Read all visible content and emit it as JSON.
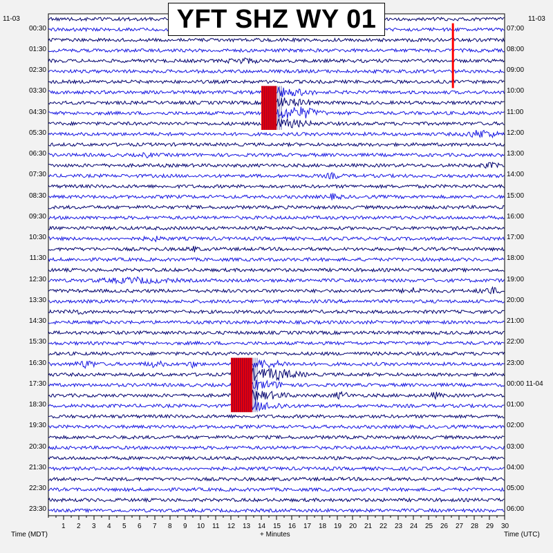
{
  "chart_data": {
    "type": "helicorder",
    "title": "YFT SHZ WY 01",
    "left_date": "11-03",
    "right_date": "11-03",
    "left_times": [
      "00:30",
      "01:30",
      "02:30",
      "03:30",
      "04:30",
      "05:30",
      "06:30",
      "07:30",
      "08:30",
      "09:30",
      "10:30",
      "11:30",
      "12:30",
      "13:30",
      "14:30",
      "15:30",
      "16:30",
      "17:30",
      "18:30",
      "19:30",
      "20:30",
      "21:30",
      "22:30",
      "23:30"
    ],
    "right_times": [
      "07:00",
      "08:00",
      "09:00",
      "10:00",
      "11:00",
      "12:00",
      "13:00",
      "14:00",
      "15:00",
      "16:00",
      "17:00",
      "18:00",
      "19:00",
      "20:00",
      "21:00",
      "22:00",
      "23:00",
      "00:00 11-04",
      "01:00",
      "02:00",
      "03:00",
      "04:00",
      "05:00",
      "06:00"
    ],
    "x_ticks": [
      "1",
      "2",
      "3",
      "4",
      "5",
      "6",
      "7",
      "8",
      "9",
      "10",
      "11",
      "12",
      "13",
      "14",
      "15",
      "16",
      "17",
      "18",
      "19",
      "20",
      "21",
      "22",
      "23",
      "24",
      "25",
      "26",
      "27",
      "28",
      "29",
      "30"
    ],
    "xlim": [
      0,
      30
    ],
    "xlabel": "+ Minutes",
    "left_axis_label": "Time (MDT)",
    "right_axis_label": "Time (UTC)",
    "traces_per_hour": 2,
    "trace_colors": [
      "#00006e",
      "#1414e0"
    ],
    "clipped_color": "#ff0000",
    "clipped_events": [
      {
        "trace_start": 7,
        "trace_end": 10,
        "minute_start": 14.0,
        "minute_end": 15.0
      },
      {
        "trace_start": 33,
        "trace_end": 37,
        "minute_start": 12.0,
        "minute_end": 13.4
      }
    ],
    "spike_event": {
      "trace_start": 1,
      "trace_end": 6,
      "minute": 26.6
    }
  }
}
